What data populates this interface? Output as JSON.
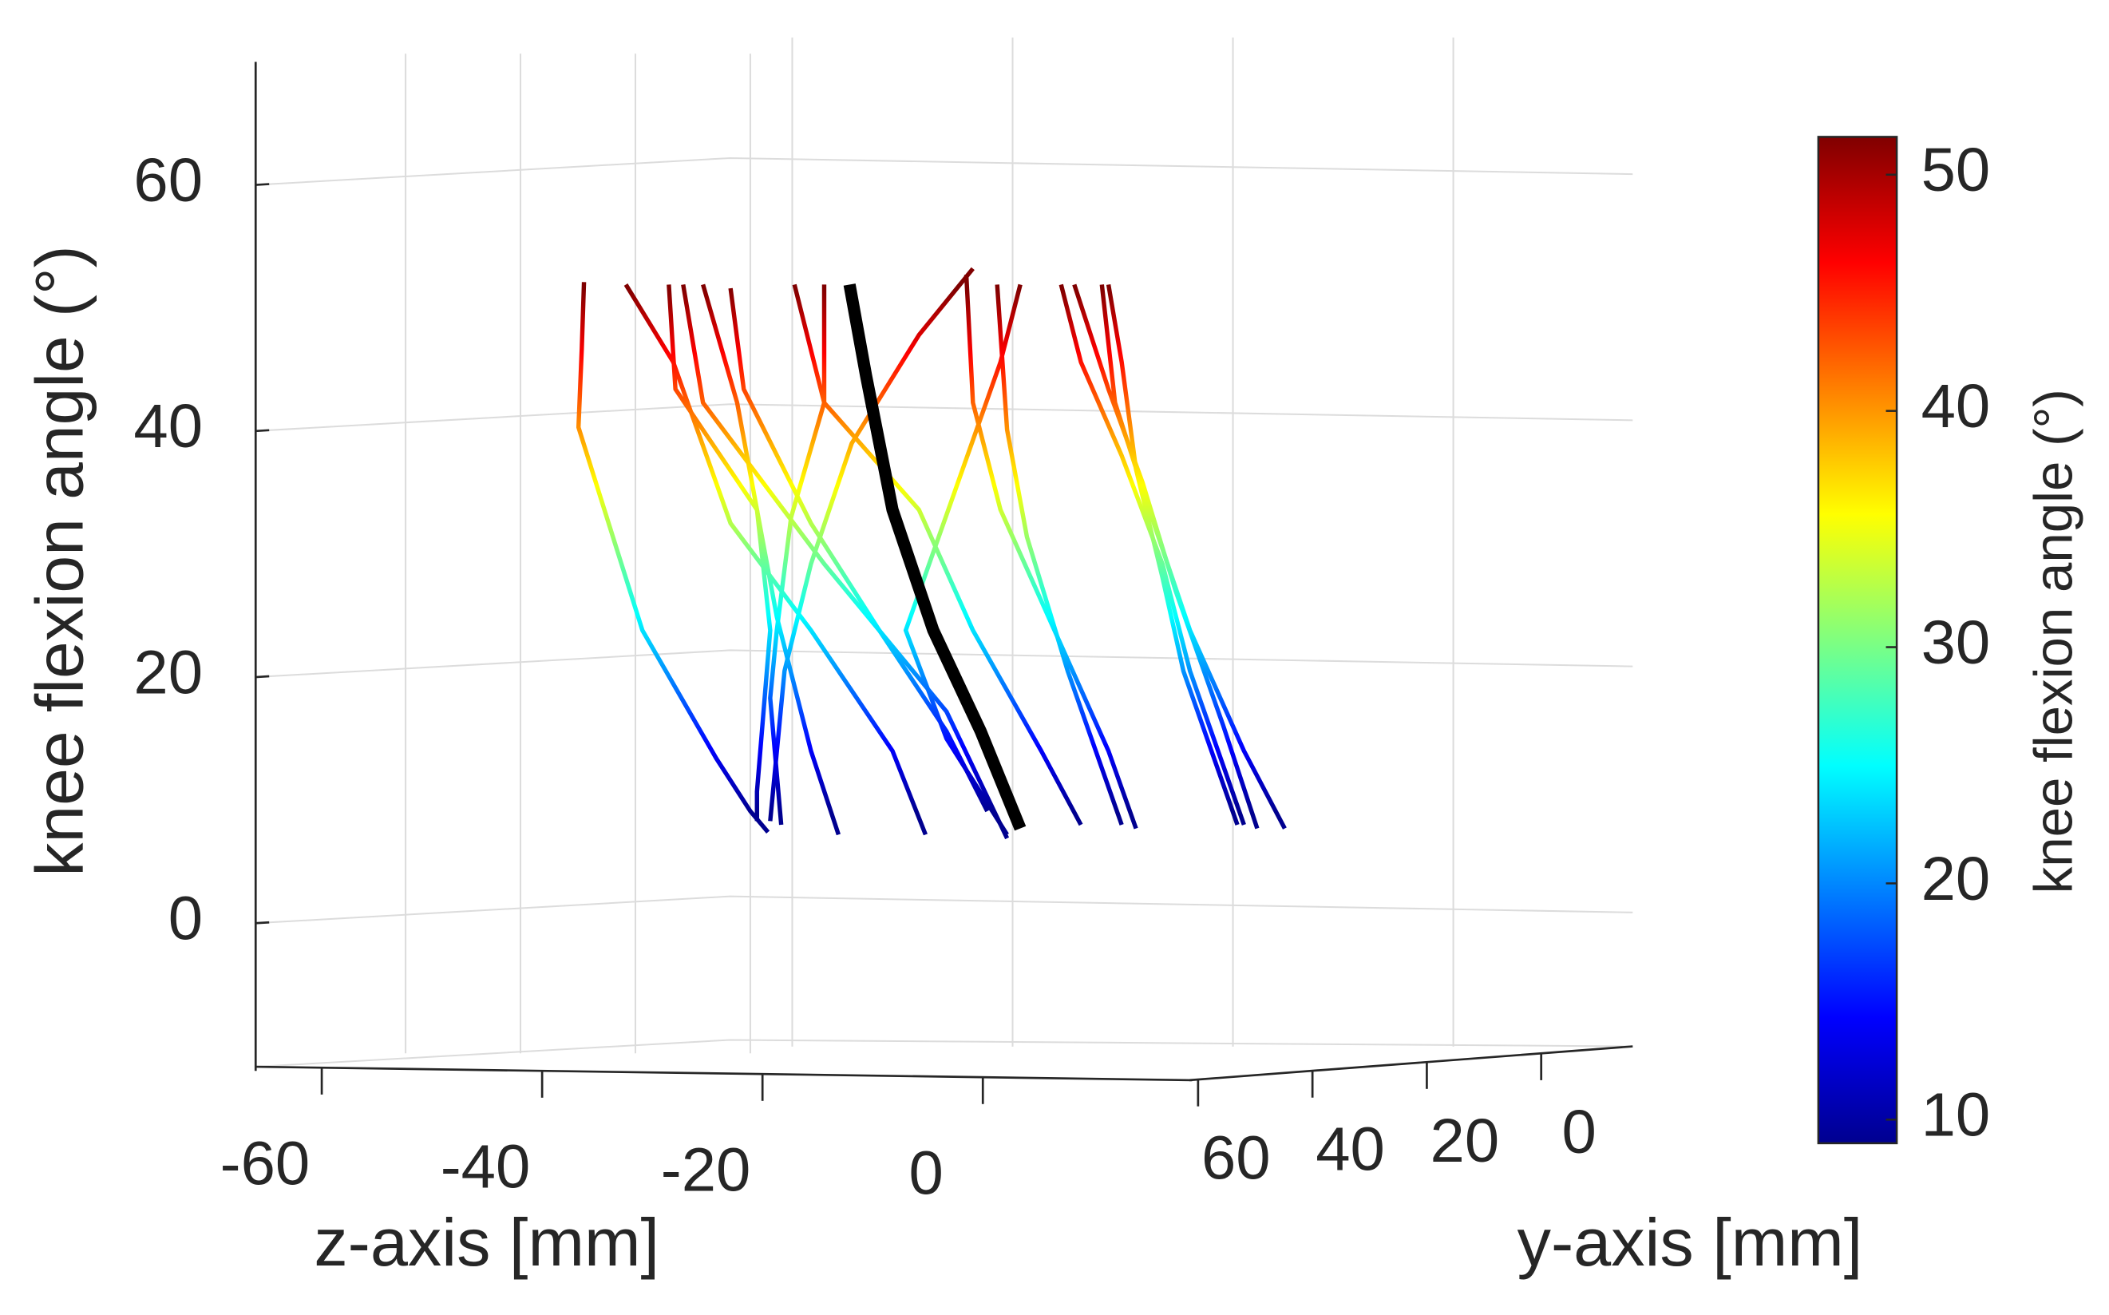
{
  "chart_data": {
    "type": "line3d",
    "xlabel": "z-axis [mm]",
    "ylabel": "y-axis [mm]",
    "zlabel": "knee flexion angle (°)",
    "xlim": [
      -66,
      19
    ],
    "ylim": [
      -16,
      61.5
    ],
    "zlim": [
      -12,
      70
    ],
    "xticks": [
      -60,
      -40,
      -20,
      0
    ],
    "yticks": [
      60,
      40,
      20,
      0
    ],
    "zticks": [
      0,
      20,
      40,
      60
    ],
    "grid": true,
    "colorbar": {
      "label": "knee flexion angle (°)",
      "colormap": "jet",
      "lim": [
        9,
        51.6
      ],
      "ticks": [
        10,
        20,
        30,
        40,
        50
      ]
    },
    "series": [
      {
        "x": [
          -36.2,
          -36.4,
          -36.7,
          -33.4,
          -30.9,
          -24.2,
          -21.1,
          -19.5
        ],
        "values": [
          52.1,
          46.7,
          40.3,
          30.9,
          23.8,
          13.4,
          9.1,
          7.4
        ]
      },
      {
        "x": [
          -32.4,
          -28.1,
          -22.9,
          -15.6,
          -8.2,
          -5.2
        ],
        "values": [
          51.9,
          45.6,
          32.5,
          23.8,
          14.0,
          7.2
        ]
      },
      {
        "x": [
          -28.5,
          -27.9,
          -20.5,
          -19.3,
          -20.5,
          -20.5
        ],
        "values": [
          51.9,
          43.4,
          33.6,
          23.8,
          10.7,
          8.3
        ]
      },
      {
        "x": [
          -27.2,
          -25.4,
          -14.4,
          -3.3,
          2.2
        ],
        "values": [
          51.9,
          42.3,
          29.2,
          17.2,
          6.9
        ]
      },
      {
        "x": [
          -25.4,
          -22.3,
          -20.5,
          -18.7,
          -15.6,
          -13.1
        ],
        "values": [
          51.9,
          42.3,
          33.6,
          24.9,
          14.0,
          7.2
        ]
      },
      {
        "x": [
          -22.9,
          -21.7,
          -15.6,
          -9.4,
          -3.3,
          0.4
        ],
        "values": [
          51.6,
          43.4,
          32.5,
          23.8,
          15.6,
          9.1
        ]
      },
      {
        "x": [
          -17.1,
          -14.4,
          -5.8,
          -0.9,
          5.3,
          8.9
        ],
        "values": [
          51.9,
          42.3,
          33.6,
          23.8,
          14.0,
          8.0
        ]
      },
      {
        "x": [
          -14.4,
          -14.4,
          -17.4,
          -18.7,
          -19.3,
          -18.3
        ],
        "values": [
          51.9,
          42.3,
          33.0,
          23.8,
          18.3,
          8.0
        ]
      },
      {
        "x": [
          -0.9,
          -5.8,
          -11.9,
          -15.6,
          -18.0,
          -19.3
        ],
        "values": [
          53.2,
          47.8,
          39.0,
          29.2,
          20.5,
          8.3
        ]
      },
      {
        "x": [
          -1.5,
          -0.9,
          1.6,
          6.5,
          11.4,
          13.9
        ],
        "values": [
          52.7,
          42.3,
          33.6,
          23.8,
          14.0,
          7.7
        ]
      },
      {
        "x": [
          1.3,
          2.2,
          4.0,
          7.7,
          12.6
        ],
        "values": [
          51.9,
          40.1,
          31.4,
          20.5,
          8.0
        ]
      },
      {
        "x": [
          3.4,
          1.6,
          -2.7,
          -7.0,
          -3.3,
          2.2
        ],
        "values": [
          51.9,
          45.6,
          34.7,
          23.8,
          15.0,
          7.2
        ]
      },
      {
        "x": [
          7.1,
          8.9,
          12.6,
          16.3,
          18.8,
          23.7
        ],
        "values": [
          51.9,
          45.6,
          38.0,
          29.2,
          20.5,
          8.0
        ]
      },
      {
        "x": [
          8.3,
          11.4,
          14.5,
          17.5,
          21.8,
          24.9
        ],
        "values": [
          51.9,
          43.4,
          35.8,
          27.0,
          16.1,
          7.7
        ]
      },
      {
        "x": [
          10.8,
          12.0,
          15.1,
          18.8,
          23.7,
          27.4
        ],
        "values": [
          51.9,
          42.3,
          33.6,
          23.8,
          14.0,
          7.7
        ]
      },
      {
        "x": [
          11.4,
          12.6,
          13.9,
          16.3,
          18.2,
          23.1
        ],
        "values": [
          51.9,
          45.6,
          36.9,
          28.1,
          20.5,
          8.0
        ]
      },
      {
        "color": "#000000",
        "x": [
          -12.1,
          -10.6,
          -8.2,
          -4.5,
          -0.2,
          3.4
        ],
        "values": [
          51.9,
          44.5,
          33.6,
          23.8,
          15.6,
          7.7
        ]
      }
    ]
  }
}
